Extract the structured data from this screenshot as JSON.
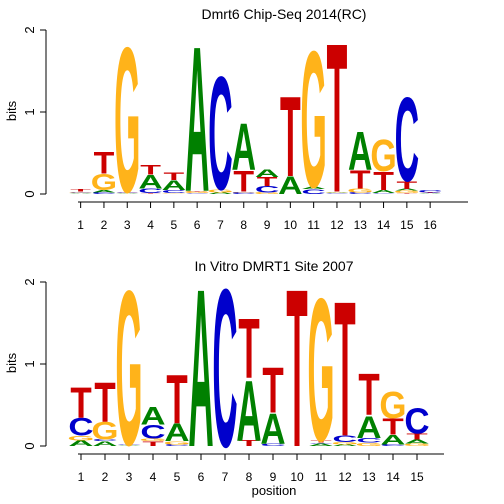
{
  "colors": {
    "A": "#008000",
    "C": "#0000cc",
    "G": "#ffb31a",
    "T": "#cc0000"
  },
  "chart_data": [
    {
      "type": "sequence-logo",
      "title": "Dmrt6 Chip-Seq 2014(RC)",
      "ylabel": "bits",
      "xlabel": "",
      "ylim": [
        0,
        2
      ],
      "yticks": [
        "0",
        "1",
        "2"
      ],
      "positions": [
        "1",
        "2",
        "3",
        "4",
        "5",
        "6",
        "7",
        "8",
        "9",
        "10",
        "11",
        "12",
        "13",
        "14",
        "15",
        "16"
      ],
      "stacks": [
        [
          [
            "A",
            0.01
          ],
          [
            "G",
            0.01
          ],
          [
            "C",
            0.01
          ],
          [
            "T",
            0.03
          ]
        ],
        [
          [
            "C",
            0.02
          ],
          [
            "A",
            0.03
          ],
          [
            "G",
            0.2
          ],
          [
            "T",
            0.28
          ]
        ],
        [
          [
            "A",
            0.01
          ],
          [
            "C",
            0.01
          ],
          [
            "T",
            0.01
          ],
          [
            "G",
            1.82
          ]
        ],
        [
          [
            "T",
            0.01
          ],
          [
            "C",
            0.06
          ],
          [
            "A",
            0.17
          ],
          [
            "T",
            0.12
          ]
        ],
        [
          [
            "G",
            0.01
          ],
          [
            "C",
            0.04
          ],
          [
            "A",
            0.12
          ],
          [
            "T",
            0.1
          ]
        ],
        [
          [
            "C",
            0.01
          ],
          [
            "G",
            0.02
          ],
          [
            "T",
            0.01
          ],
          [
            "A",
            1.82
          ]
        ],
        [
          [
            "A",
            0.02
          ],
          [
            "G",
            0.04
          ],
          [
            "C",
            1.42
          ]
        ],
        [
          [
            "C",
            0.02
          ],
          [
            "G",
            0.01
          ],
          [
            "T",
            0.26
          ],
          [
            "A",
            0.59
          ]
        ],
        [
          [
            "G",
            0.02
          ],
          [
            "C",
            0.08
          ],
          [
            "T",
            0.11
          ],
          [
            "A",
            0.1
          ]
        ],
        [
          [
            "A",
            0.22
          ],
          [
            "T",
            1.0
          ]
        ],
        [
          [
            "C",
            0.06
          ],
          [
            "A",
            0.03
          ],
          [
            "G",
            1.71
          ]
        ],
        [
          [
            "C",
            0.01
          ],
          [
            "A",
            0.01
          ],
          [
            "G",
            0.01
          ],
          [
            "T",
            1.87
          ]
        ],
        [
          [
            "C",
            0.02
          ],
          [
            "G",
            0.05
          ],
          [
            "T",
            0.23
          ],
          [
            "A",
            0.48
          ]
        ],
        [
          [
            "C",
            0.01
          ],
          [
            "A",
            0.04
          ],
          [
            "T",
            0.23
          ],
          [
            "G",
            0.4
          ]
        ],
        [
          [
            "T",
            0.01
          ],
          [
            "G",
            0.03
          ],
          [
            "A",
            0.02
          ],
          [
            "T",
            0.1
          ],
          [
            "C",
            1.05
          ]
        ],
        [
          [
            "A",
            0.01
          ],
          [
            "T",
            0.01
          ],
          [
            "C",
            0.03
          ]
        ]
      ]
    },
    {
      "type": "sequence-logo",
      "title": "In Vitro DMRT1 Site 2007",
      "ylabel": "bits",
      "xlabel": "position",
      "ylim": [
        0,
        2
      ],
      "yticks": [
        "0",
        "1",
        "2"
      ],
      "positions": [
        "1",
        "2",
        "3",
        "4",
        "5",
        "6",
        "7",
        "8",
        "9",
        "10",
        "11",
        "12",
        "13",
        "14",
        "15"
      ],
      "stacks": [
        [
          [
            "A",
            0.07
          ],
          [
            "G",
            0.06
          ],
          [
            "C",
            0.22
          ],
          [
            "T",
            0.38
          ]
        ],
        [
          [
            "A",
            0.06
          ],
          [
            "C",
            0.02
          ],
          [
            "G",
            0.22
          ],
          [
            "T",
            0.5
          ]
        ],
        [
          [
            "A",
            0.01
          ],
          [
            "C",
            0.01
          ],
          [
            "G",
            1.94
          ]
        ],
        [
          [
            "T",
            0.06
          ],
          [
            "G",
            0.03
          ],
          [
            "C",
            0.17
          ],
          [
            "A",
            0.22
          ]
        ],
        [
          [
            "C",
            0.02
          ],
          [
            "G",
            0.04
          ],
          [
            "A",
            0.22
          ],
          [
            "T",
            0.61
          ]
        ],
        [
          [
            "A",
            1.98
          ]
        ],
        [
          [
            "C",
            1.98
          ]
        ],
        [
          [
            "T",
            0.07
          ],
          [
            "A",
            0.76
          ],
          [
            "T",
            0.75
          ]
        ],
        [
          [
            "C",
            0.03
          ],
          [
            "A",
            0.38
          ],
          [
            "T",
            0.57
          ]
        ],
        [
          [
            "T",
            1.98
          ]
        ],
        [
          [
            "A",
            0.03
          ],
          [
            "C",
            0.01
          ],
          [
            "T",
            0.03
          ],
          [
            "G",
            1.79
          ]
        ],
        [
          [
            "A",
            0.02
          ],
          [
            "G",
            0.03
          ],
          [
            "C",
            0.08
          ],
          [
            "T",
            1.69
          ]
        ],
        [
          [
            "G",
            0.04
          ],
          [
            "C",
            0.06
          ],
          [
            "A",
            0.28
          ],
          [
            "T",
            0.52
          ]
        ],
        [
          [
            "C",
            0.02
          ],
          [
            "A",
            0.12
          ],
          [
            "T",
            0.2
          ],
          [
            "G",
            0.33
          ]
        ],
        [
          [
            "G",
            0.03
          ],
          [
            "A",
            0.05
          ],
          [
            "T",
            0.07
          ],
          [
            "C",
            0.32
          ]
        ]
      ]
    }
  ]
}
